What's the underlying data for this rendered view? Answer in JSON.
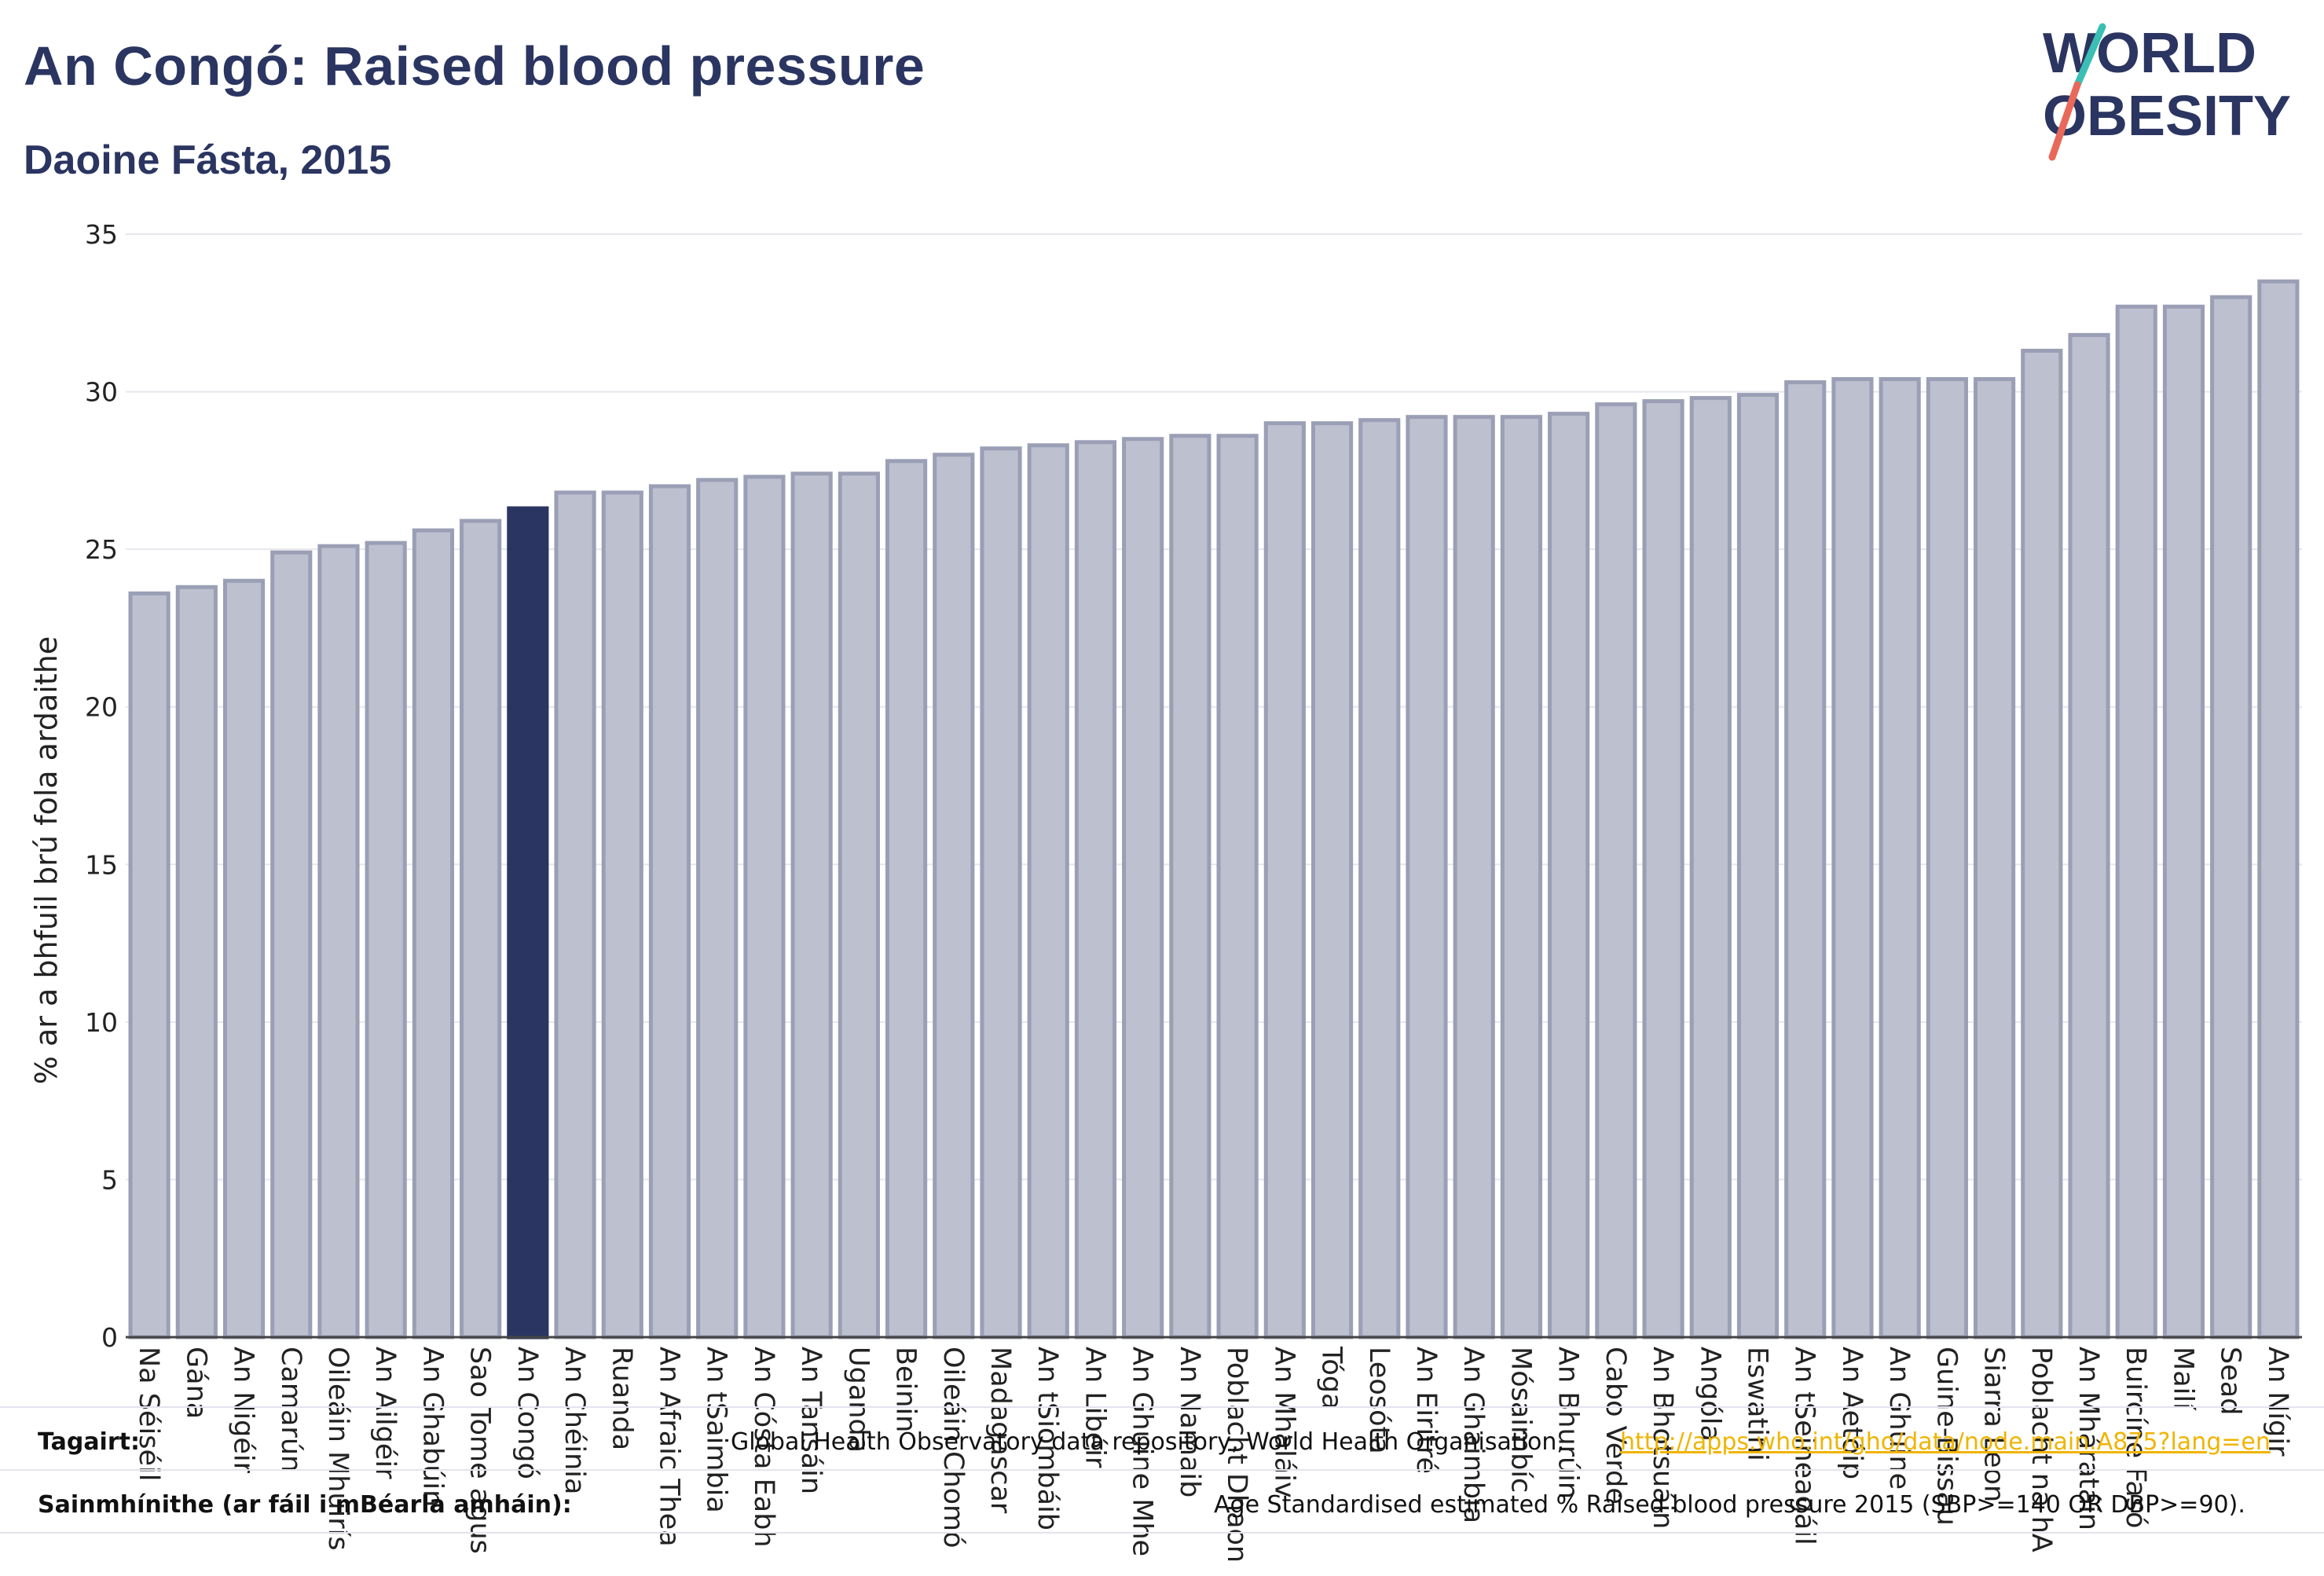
{
  "header": {
    "title": "An Congó: Raised blood pressure",
    "subtitle": "Daoine Fásta, 2015"
  },
  "logo": {
    "line1": "WORLD",
    "line2": "OBESITY"
  },
  "footer": {
    "ref_label": "Tagairt:",
    "ref_text": "Global Health Observatory data repository, World Health Organisation,",
    "ref_link": "http://apps.who.int/gho/data/node.main.A875?lang=en",
    "def_label": "Sainmhínithe (ar fáil i mBéarla amháin):",
    "def_text": "Age Standardised estimated % Raised blood pressure 2015 (SBP>=140 OR DBP>=90)."
  },
  "colors": {
    "highlight": "#2b3561",
    "bar": "#bcc0cf",
    "bar_border": "#9a9fb5",
    "grid": "#e6e6ee",
    "accent_teal": "#3bbfb4",
    "accent_red": "#e8695a",
    "link": "#f0b400"
  },
  "chart_data": {
    "type": "bar",
    "ylabel": "% ar a bhfuil brú fola ardaithe",
    "ylim": [
      0,
      35
    ],
    "yticks": [
      0,
      5,
      10,
      15,
      20,
      25,
      30,
      35
    ],
    "grid": true,
    "highlight": "An Congó",
    "categories": [
      "Na Séiséil",
      "Gána",
      "An Nigéir",
      "Camarún",
      "Oileáin Mhuirís",
      "An Ailgéir",
      "An Ghabúin",
      "Sao Tome agus",
      "An Congó",
      "An Chéinia",
      "Ruanda",
      "An Afraic Thea",
      "An tSaimbia",
      "An Cósta Eabh",
      "An Tansáin",
      "Uganda",
      "Beinin",
      "Oileáin Chomó",
      "Madagascar",
      "An tSiombáib",
      "An Libéir",
      "An Ghuine Mhe",
      "An Namaib",
      "Poblacht Dhaon",
      "An Mhaláiv",
      "Tóga",
      "Leosóta",
      "An Eiritré",
      "An Ghaimbia",
      "Mósaimbíc",
      "An Bhurúin",
      "Cabo Verde",
      "An Bhotsuáin",
      "Angóla",
      "Eswatini",
      "An tSeineagáil",
      "An Aetóip",
      "An Ghuine",
      "Guine-Bissau",
      "Siarra Leon",
      "Poblacht na hA",
      "An Mháratáin",
      "Buircíne Fasó",
      "Mailí",
      "Sead",
      "An Nígir"
    ],
    "values": [
      23.6,
      23.8,
      24.0,
      24.9,
      25.1,
      25.2,
      25.6,
      25.9,
      26.3,
      26.8,
      26.8,
      27.0,
      27.2,
      27.3,
      27.4,
      27.4,
      27.8,
      28.0,
      28.2,
      28.3,
      28.4,
      28.5,
      28.6,
      28.6,
      29.0,
      29.0,
      29.1,
      29.2,
      29.2,
      29.2,
      29.3,
      29.6,
      29.7,
      29.8,
      29.9,
      30.3,
      30.4,
      30.4,
      30.4,
      30.4,
      31.3,
      31.8,
      32.7,
      32.7,
      33.0,
      33.5
    ]
  }
}
